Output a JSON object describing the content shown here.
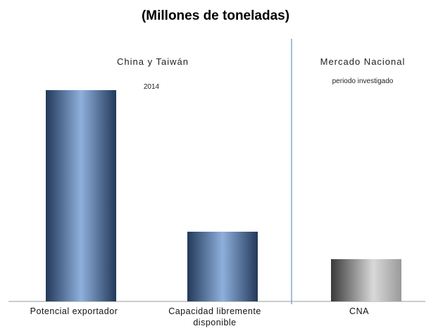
{
  "chart_data": {
    "type": "bar",
    "title": "(Millones de toneladas)",
    "groups": [
      {
        "label": "China y Taiwán",
        "sublabel": "2014"
      },
      {
        "label": "Mercado Nacional",
        "sublabel": "periodo investigado"
      }
    ],
    "categories": [
      "Potencial exportador",
      "Capacidad libremente disponible",
      "CNA"
    ],
    "values": [
      100,
      33,
      20
    ],
    "ylim": [
      0,
      110
    ],
    "grid": false,
    "legend": "none",
    "colors": {
      "bar_dark": "#22395a",
      "bar_light": "#8fb0dc",
      "cna_dark": "#3a3a3a",
      "cna_light": "#d9d9d9",
      "separator": "#6a8fc4",
      "axis": "#9a9a9a"
    }
  }
}
